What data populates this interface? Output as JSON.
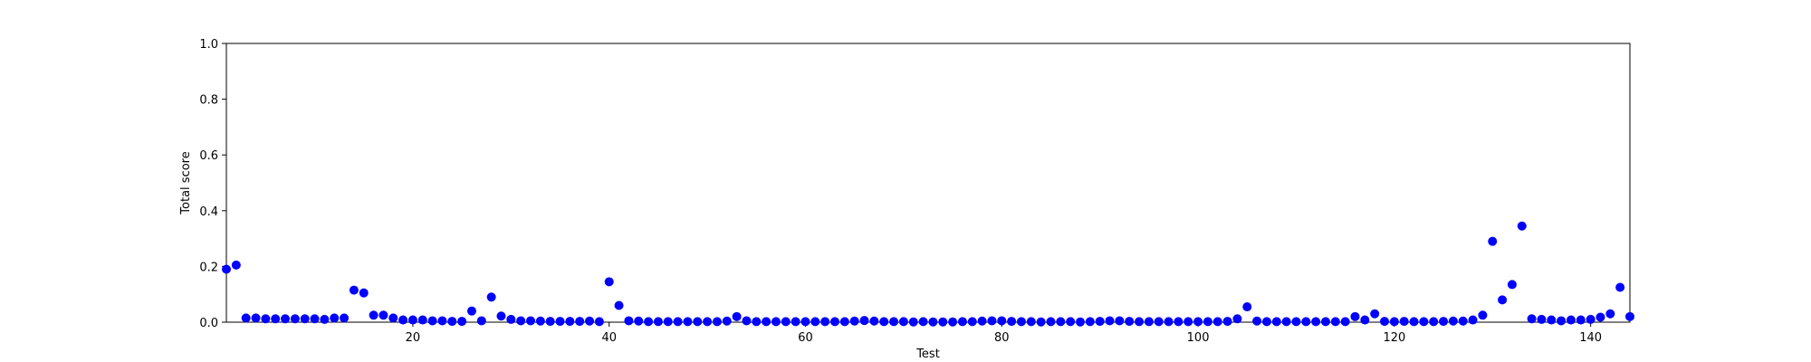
{
  "chart_data": {
    "type": "scatter",
    "title": "",
    "xlabel": "Test",
    "ylabel": "Total score",
    "xlim": [
      1,
      144
    ],
    "ylim": [
      0.0,
      1.0
    ],
    "xticks": [
      20,
      40,
      60,
      80,
      100,
      120,
      140
    ],
    "xtick_labels": [
      "20",
      "40",
      "60",
      "80",
      "100",
      "120",
      "140"
    ],
    "yticks": [
      0.0,
      0.2,
      0.4,
      0.6,
      0.8,
      1.0
    ],
    "ytick_labels": [
      "0.0",
      "0.2",
      "0.4",
      "0.6",
      "0.8",
      "1.0"
    ],
    "grid": false,
    "legend": "none",
    "marker_color": "#0000ff",
    "series": [
      {
        "x": [
          1,
          2,
          3,
          4,
          5,
          6,
          7,
          8,
          9,
          10,
          11,
          12,
          13,
          14,
          15,
          16,
          17,
          18,
          19,
          20,
          21,
          22,
          23,
          24,
          25,
          26,
          27,
          28,
          29,
          30,
          31,
          32,
          33,
          34,
          35,
          36,
          37,
          38,
          39,
          40,
          41,
          42,
          43,
          44,
          45,
          46,
          47,
          48,
          49,
          50,
          51,
          52,
          53,
          54,
          55,
          56,
          57,
          58,
          59,
          60,
          61,
          62,
          63,
          64,
          65,
          66,
          67,
          68,
          69,
          70,
          71,
          72,
          73,
          74,
          75,
          76,
          77,
          78,
          79,
          80,
          81,
          82,
          83,
          84,
          85,
          86,
          87,
          88,
          89,
          90,
          91,
          92,
          93,
          94,
          95,
          96,
          97,
          98,
          99,
          100,
          101,
          102,
          103,
          104,
          105,
          106,
          107,
          108,
          109,
          110,
          111,
          112,
          113,
          114,
          115,
          116,
          117,
          118,
          119,
          120,
          121,
          122,
          123,
          124,
          125,
          126,
          127,
          128,
          129,
          130,
          131,
          132,
          133,
          134,
          135,
          136,
          137,
          138,
          139,
          140,
          141,
          142,
          143,
          144
        ],
        "y": [
          0.19,
          0.205,
          0.015,
          0.015,
          0.012,
          0.012,
          0.012,
          0.012,
          0.012,
          0.012,
          0.01,
          0.015,
          0.015,
          0.115,
          0.105,
          0.025,
          0.025,
          0.015,
          0.008,
          0.008,
          0.008,
          0.005,
          0.005,
          0.003,
          0.003,
          0.04,
          0.005,
          0.09,
          0.022,
          0.01,
          0.005,
          0.005,
          0.004,
          0.003,
          0.003,
          0.003,
          0.003,
          0.004,
          0.002,
          0.145,
          0.06,
          0.005,
          0.004,
          0.002,
          0.002,
          0.002,
          0.002,
          0.002,
          0.002,
          0.002,
          0.002,
          0.004,
          0.02,
          0.005,
          0.002,
          0.002,
          0.002,
          0.002,
          0.002,
          0.002,
          0.002,
          0.002,
          0.002,
          0.002,
          0.004,
          0.006,
          0.004,
          0.002,
          0.002,
          0.002,
          0.001,
          0.002,
          0.001,
          0.001,
          0.001,
          0.002,
          0.002,
          0.004,
          0.005,
          0.005,
          0.003,
          0.002,
          0.002,
          0.001,
          0.002,
          0.002,
          0.002,
          0.001,
          0.002,
          0.003,
          0.005,
          0.005,
          0.003,
          0.002,
          0.002,
          0.002,
          0.002,
          0.002,
          0.002,
          0.002,
          0.002,
          0.002,
          0.003,
          0.012,
          0.055,
          0.004,
          0.002,
          0.002,
          0.002,
          0.002,
          0.002,
          0.002,
          0.002,
          0.002,
          0.002,
          0.02,
          0.008,
          0.03,
          0.003,
          0.002,
          0.003,
          0.002,
          0.002,
          0.002,
          0.003,
          0.004,
          0.004,
          0.008,
          0.025,
          0.29,
          0.08,
          0.135,
          0.345,
          0.012,
          0.01,
          0.008,
          0.005,
          0.008,
          0.008,
          0.01,
          0.018,
          0.03,
          0.125,
          0.02
        ]
      }
    ]
  }
}
